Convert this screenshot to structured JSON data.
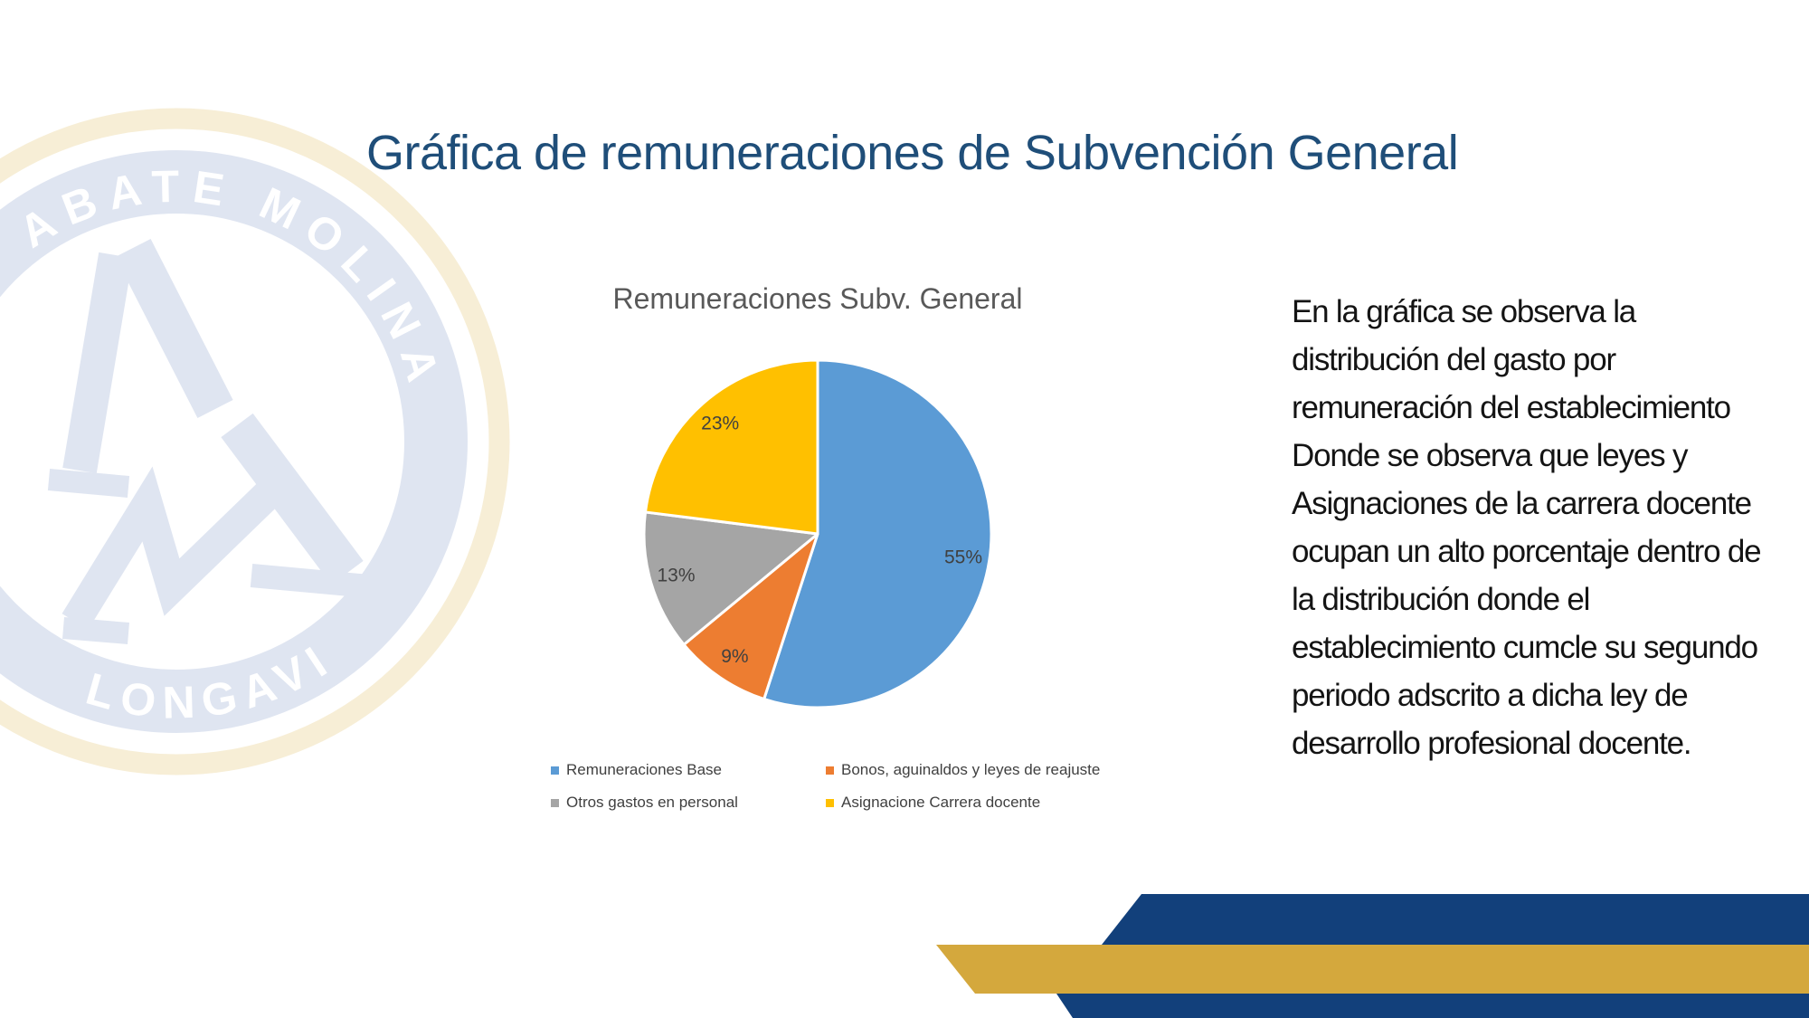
{
  "slide": {
    "title": "Gráfica de remuneraciones de Subvención General",
    "commentary": "En la gráfica se observa la\ndistribución del gasto por\nremuneración del establecimiento\nDonde se observa que leyes y\nAsignaciones de la carrera docente\nocupan un alto porcentaje dentro de\nla distribución donde el\nestablecimiento cumcle su segundo\nperiodo adscrito a dicha ley de\ndesarrollo profesional docente."
  },
  "watermark": {
    "arc_top": "ABATE MOLINA",
    "arc_bottom": "LONGAVI"
  },
  "chart_data": {
    "type": "pie",
    "title": "Remuneraciones Subv. General",
    "start_angle": "top",
    "direction": "clockwise",
    "legend_position": "bottom",
    "grid": "off",
    "text_color": "#404040",
    "title_color": "#595959",
    "series": [
      {
        "name": "Remuneraciones Base",
        "value": 55,
        "label": "55%",
        "color": "#5B9BD5"
      },
      {
        "name": "Bonos, aguinaldos y leyes de reajuste",
        "value": 9,
        "label": "9%",
        "color": "#ED7D31"
      },
      {
        "name": "Otros gastos en personal",
        "value": 13,
        "label": "13%",
        "color": "#A5A5A5"
      },
      {
        "name": "Asignacione Carrera docente",
        "value": 23,
        "label": "23%",
        "color": "#FFC000"
      }
    ]
  },
  "colors": {
    "title": "#1F4E79",
    "ribbon_navy": "#12407B",
    "ribbon_gold": "#D4A83D",
    "watermark_cream": "#F7EED6",
    "watermark_blue": "#DFE5F1"
  }
}
